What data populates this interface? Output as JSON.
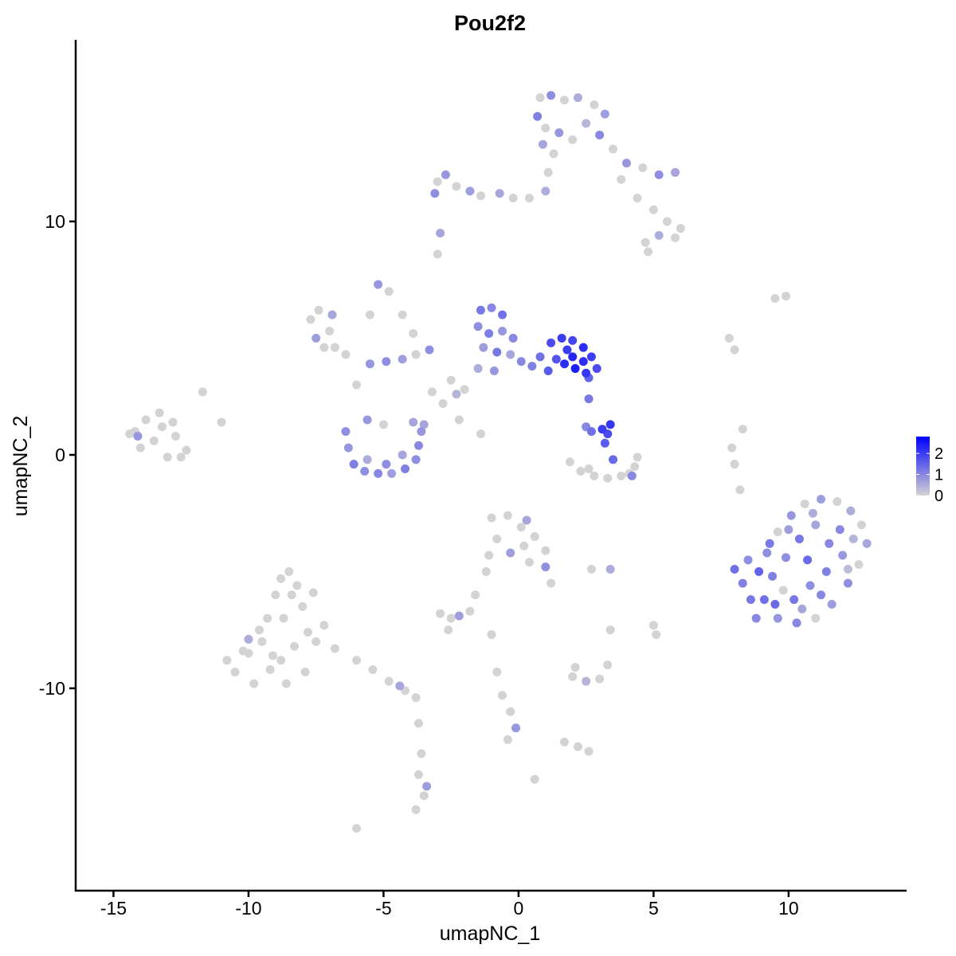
{
  "chart_data": {
    "type": "scatter",
    "title": "Pou2f2",
    "x_label": "umapNC_1",
    "y_label": "umapNC_2",
    "xlim": [
      -16.4,
      14.37
    ],
    "ylim": [
      -18.67,
      17.78
    ],
    "xticks": [
      -15,
      -10,
      -5,
      0,
      5,
      10
    ],
    "yticks": [
      -10,
      0,
      10
    ],
    "color_low": "#d3d3d3",
    "color_high": "#0000ff",
    "color_lim": [
      0,
      2.8
    ],
    "color_ticks": [
      0,
      1,
      2
    ],
    "x": [
      -14.2,
      -13.8,
      -13.3,
      -12.8,
      -13.5,
      -14.0,
      -12.7,
      -12.3,
      -13.0,
      -14.4,
      -13.2,
      -12.5,
      -14.1,
      -11.7,
      -11.0,
      -10.8,
      -10.5,
      -10.2,
      -9.8,
      -9.5,
      -9.3,
      -9.0,
      -8.8,
      -8.5,
      -8.2,
      -8.0,
      -7.8,
      -8.3,
      -8.8,
      -9.2,
      -8.6,
      -7.9,
      -7.5,
      -7.2,
      -8.7,
      -9.6,
      -10.0,
      -8.4,
      -7.6,
      -9.1,
      -10.0,
      -6.8,
      -6.0,
      -5.4,
      -4.8,
      -4.2,
      -3.8,
      -4.4,
      -3.7,
      -3.6,
      -3.7,
      -3.5,
      -3.8,
      -3.4,
      -6.0,
      0.8,
      1.2,
      1.7,
      2.2,
      2.8,
      3.2,
      0.7,
      1.0,
      1.5,
      2.0,
      2.5,
      3.0,
      3.5,
      0.9,
      1.3,
      4.0,
      4.6,
      5.2,
      5.8,
      3.8,
      4.4,
      5.0,
      5.5,
      6.0,
      5.8,
      5.2,
      4.7,
      4.8,
      -3.0,
      -2.7,
      -3.1,
      -2.3,
      -1.8,
      -1.4,
      -0.7,
      -0.2,
      0.4,
      1.0,
      1.1,
      -2.9,
      -3.0,
      -1.4,
      -1.0,
      -0.6,
      -1.5,
      -1.1,
      -0.6,
      -0.2,
      -1.3,
      -0.8,
      -0.3,
      0.1,
      -1.5,
      -0.9,
      0.5,
      0.8,
      1.2,
      1.6,
      2.0,
      2.4,
      2.7,
      2.9,
      2.5,
      2.1,
      1.7,
      1.4,
      1.1,
      2.0,
      2.4,
      1.8,
      2.6,
      2.6,
      -7.7,
      -7.4,
      -7.0,
      -7.5,
      -6.8,
      -6.4,
      -6.9,
      -7.2,
      -5.5,
      -4.9,
      -4.3,
      -3.8,
      -3.3,
      -5.2,
      -4.8,
      -4.3,
      -3.9,
      -2.5,
      -2.0,
      -2.8,
      -2.3,
      -3.2,
      -2.2,
      -1.4,
      -3.5,
      -5.5,
      -6.0,
      -6.4,
      -6.3,
      -6.1,
      -5.7,
      -5.2,
      -4.7,
      -4.2,
      -3.8,
      -3.7,
      -3.6,
      -3.9,
      -5.6,
      -4.9,
      -4.3,
      -5.0,
      -5.6,
      3.1,
      3.3,
      3.4,
      3.2,
      2.7,
      2.5,
      3.5,
      1.9,
      2.3,
      2.8,
      3.3,
      3.8,
      4.3,
      4.4,
      4.1,
      2.6,
      4.2,
      7.8,
      8.0,
      9.5,
      9.9,
      8.3,
      7.9,
      8.0,
      8.2,
      -1.0,
      -0.4,
      0.1,
      0.6,
      1.0,
      -0.8,
      -0.3,
      0.4,
      -1.1,
      0.2,
      1.0,
      1.2,
      0.3,
      -1.2,
      -1.6,
      -1.8,
      -2.9,
      -2.5,
      -2.2,
      -2.6,
      -1.0,
      2.7,
      3.4,
      5.0,
      5.1,
      3.4,
      -0.8,
      -0.6,
      -0.3,
      -0.1,
      -0.4,
      2.0,
      2.5,
      3.0,
      3.3,
      2.1,
      2.2,
      2.6,
      1.7,
      0.6,
      8.0,
      8.3,
      8.6,
      8.8,
      9.2,
      9.6,
      10.1,
      10.6,
      11.2,
      11.8,
      12.3,
      12.7,
      12.9,
      12.6,
      12.2,
      11.6,
      11.0,
      10.3,
      9.6,
      9.1,
      9.4,
      9.9,
      10.4,
      11.0,
      11.5,
      12.0,
      11.4,
      10.8,
      10.2,
      9.8,
      10.7,
      11.9,
      10.0,
      8.9,
      12.4,
      11.2,
      8.5,
      9.5,
      10.5,
      12.2,
      10.9,
      9.3
    ],
    "y": [
      1.0,
      1.5,
      1.8,
      1.4,
      0.6,
      0.3,
      0.8,
      0.2,
      -0.1,
      0.9,
      1.2,
      -0.1,
      0.8,
      2.7,
      1.4,
      -8.8,
      -9.3,
      -8.4,
      -9.8,
      -8.0,
      -7.0,
      -6.0,
      -5.3,
      -5.0,
      -5.6,
      -6.5,
      -7.6,
      -8.2,
      -8.8,
      -9.2,
      -9.8,
      -9.3,
      -8.0,
      -7.3,
      -7.0,
      -7.5,
      -8.5,
      -6.0,
      -5.9,
      -8.6,
      -7.9,
      -8.3,
      -8.8,
      -9.2,
      -9.7,
      -10.1,
      -10.4,
      -9.9,
      -11.5,
      -12.8,
      -13.7,
      -14.6,
      -15.2,
      -14.2,
      -16.0,
      15.3,
      15.4,
      15.2,
      15.3,
      15.0,
      14.6,
      14.5,
      14.0,
      13.8,
      13.5,
      14.2,
      13.7,
      13.1,
      13.3,
      12.9,
      12.5,
      12.3,
      12.0,
      12.1,
      11.8,
      11.0,
      10.5,
      10.0,
      9.7,
      9.3,
      9.4,
      9.1,
      8.7,
      11.7,
      12.0,
      11.2,
      11.5,
      11.3,
      11.1,
      11.2,
      11.0,
      11.0,
      11.3,
      12.1,
      9.5,
      8.6,
      6.2,
      6.3,
      6.0,
      5.5,
      5.2,
      5.3,
      5.0,
      4.6,
      4.4,
      4.3,
      4.0,
      3.7,
      3.6,
      3.8,
      4.2,
      4.8,
      5.0,
      4.9,
      4.6,
      4.2,
      3.7,
      3.5,
      3.7,
      3.9,
      4.1,
      3.6,
      4.2,
      4.0,
      4.5,
      3.3,
      2.4,
      5.8,
      6.2,
      5.3,
      5.0,
      4.6,
      4.3,
      6.0,
      4.6,
      3.9,
      4.0,
      4.1,
      4.3,
      4.5,
      7.3,
      7.0,
      6.0,
      5.2,
      3.2,
      2.8,
      2.2,
      2.6,
      2.7,
      1.5,
      0.9,
      1.3,
      6.0,
      3.0,
      1.0,
      0.3,
      -0.4,
      -0.7,
      -0.8,
      -0.8,
      -0.6,
      -0.2,
      0.4,
      1.0,
      1.4,
      -0.2,
      -0.4,
      0.0,
      1.3,
      1.5,
      1.1,
      0.9,
      1.3,
      0.5,
      1.0,
      1.2,
      -0.2,
      -0.3,
      -0.7,
      -0.9,
      -1.0,
      -0.9,
      -0.5,
      -0.1,
      -0.8,
      -0.6,
      -0.9,
      5.0,
      4.5,
      6.7,
      6.8,
      1.1,
      0.3,
      -0.4,
      -1.5,
      -2.7,
      -2.6,
      -3.1,
      -3.5,
      -4.1,
      -3.6,
      -4.2,
      -4.6,
      -4.3,
      -3.9,
      -4.8,
      -5.5,
      -2.8,
      -5.0,
      -6.0,
      -6.7,
      -6.8,
      -7.0,
      -6.9,
      -7.5,
      -7.7,
      -4.9,
      -4.9,
      -7.3,
      -7.7,
      -7.5,
      -9.3,
      -10.3,
      -11.0,
      -11.7,
      -12.2,
      -9.5,
      -9.7,
      -9.6,
      -9.0,
      -9.1,
      -12.5,
      -12.7,
      -12.3,
      -13.9,
      -4.9,
      -5.5,
      -6.2,
      -7.0,
      -4.2,
      -3.3,
      -2.6,
      -2.1,
      -1.9,
      -2.0,
      -2.4,
      -3.0,
      -3.8,
      -4.7,
      -5.5,
      -6.4,
      -7.0,
      -7.2,
      -7.0,
      -6.2,
      -5.2,
      -4.4,
      -3.6,
      -3.0,
      -3.8,
      -4.3,
      -5.0,
      -5.6,
      -6.2,
      -5.8,
      -4.5,
      -3.2,
      -3.2,
      -5.0,
      -3.6,
      -6.0,
      -4.5,
      -6.4,
      -6.6,
      -4.9,
      -2.5,
      -3.8
    ],
    "values": [
      0,
      0,
      0,
      0,
      0,
      0,
      0,
      0,
      0,
      0,
      0,
      0,
      0.8,
      0,
      0,
      0,
      0,
      0,
      0,
      0,
      0,
      0,
      0,
      0,
      0,
      0,
      0,
      0,
      0,
      0,
      0,
      0,
      0,
      0,
      0,
      0,
      0,
      0,
      0,
      0,
      0.5,
      0,
      0,
      0,
      0,
      0,
      0,
      0.6,
      0,
      0,
      0,
      0,
      0,
      0.7,
      0,
      0,
      0.9,
      0,
      0.5,
      0,
      0.7,
      1.1,
      0,
      0.8,
      0,
      0.4,
      1.0,
      0,
      0.6,
      0,
      0.8,
      0,
      0.9,
      0.6,
      0,
      0,
      0,
      0,
      0,
      0,
      0.5,
      0,
      0,
      0,
      0.8,
      0.9,
      0,
      0.7,
      0,
      0.6,
      0,
      0,
      0.5,
      0,
      0.6,
      0,
      1.2,
      1.0,
      1.3,
      0.9,
      1.1,
      0.8,
      1.0,
      0.7,
      1.2,
      0.6,
      1.0,
      0.5,
      0.8,
      1.1,
      1.3,
      1.8,
      2.0,
      1.9,
      2.2,
      2.0,
      1.8,
      2.1,
      2.4,
      2.2,
      1.7,
      1.6,
      2.3,
      2.2,
      2.0,
      1.5,
      1.2,
      0,
      0,
      0,
      0.7,
      0,
      0,
      0.6,
      0,
      0.8,
      0.9,
      0.7,
      0,
      0.9,
      0.8,
      0,
      0,
      0,
      0,
      0,
      0,
      0.4,
      0,
      0,
      0,
      0.6,
      0,
      0,
      0.9,
      0.8,
      1.1,
      0.9,
      1.0,
      0.7,
      1.1,
      0.9,
      1.0,
      0.8,
      0.6,
      0.5,
      0.9,
      0.6,
      0,
      0.8,
      2.0,
      1.8,
      2.1,
      1.6,
      1.3,
      1.0,
      1.4,
      0,
      0,
      0,
      0,
      0,
      0,
      0,
      0,
      0,
      1.0,
      0,
      0,
      0,
      0,
      0,
      0,
      0,
      0,
      0,
      0,
      0,
      0,
      0,
      0,
      0.7,
      0,
      0,
      0,
      0.9,
      0,
      0.6,
      0,
      0,
      0,
      0,
      0,
      0.7,
      0,
      0,
      0,
      0.5,
      0,
      0,
      0,
      0,
      0,
      0,
      0.8,
      0,
      0,
      0.4,
      0,
      0,
      0,
      0,
      0,
      0,
      0,
      1.3,
      1.1,
      1.2,
      1.0,
      0.9,
      0,
      0.8,
      0,
      0.7,
      0,
      0.5,
      0,
      0.6,
      0,
      0.9,
      0.7,
      0,
      1.0,
      0.8,
      1.3,
      1.1,
      0.9,
      1.2,
      0.6,
      1.0,
      0.8,
      1.1,
      0.9,
      1.2,
      0,
      1.4,
      1.0,
      0.7,
      1.5,
      0.4,
      1.0,
      0.9,
      1.4,
      0.6,
      0.3,
      0.5,
      1.2
    ]
  }
}
